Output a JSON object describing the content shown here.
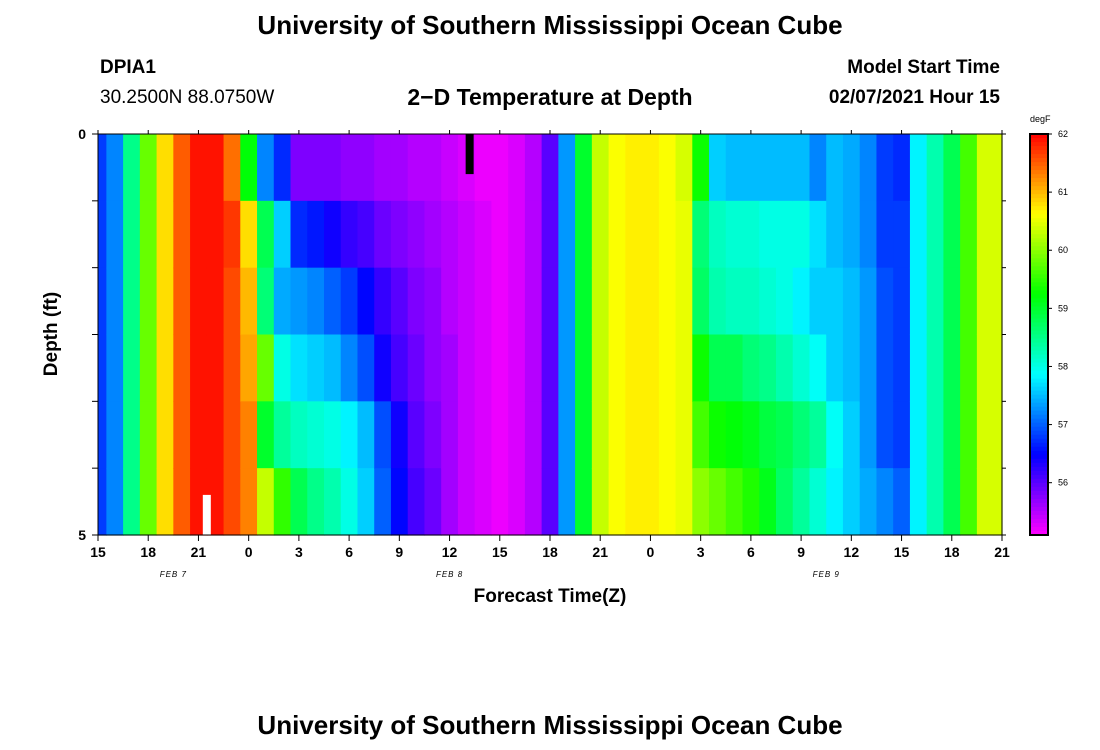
{
  "header": {
    "title": "University of Southern Mississippi Ocean Cube",
    "station_id": "DPIA1",
    "station_coords": "30.2500N 88.0750W",
    "plot_title": "2−D Temperature at Depth",
    "model_start_label": "Model Start Time",
    "model_start_value": "02/07/2021 Hour 15"
  },
  "footer": {
    "title": "University of Southern Mississippi Ocean Cube"
  },
  "chart_data": {
    "type": "heatmap",
    "title": "2−D Temperature at Depth",
    "xlabel": "Forecast Time(Z)",
    "ylabel": "Depth (ft)",
    "x_hours": [
      0,
      1,
      2,
      3,
      4,
      5,
      6,
      7,
      8,
      9,
      10,
      11,
      12,
      13,
      14,
      15,
      16,
      17,
      18,
      19,
      20,
      21,
      22,
      23,
      24,
      25,
      26,
      27,
      28,
      29,
      30,
      31,
      32,
      33,
      34,
      35,
      36,
      37,
      38,
      39,
      40,
      41,
      42,
      43,
      44,
      45,
      46,
      47,
      48,
      49,
      50,
      51,
      52,
      53,
      54
    ],
    "x_tick_labels": [
      "15",
      "18",
      "21",
      "0",
      "3",
      "6",
      "9",
      "12",
      "15",
      "18",
      "21",
      "0",
      "3",
      "6",
      "9",
      "12",
      "15",
      "18",
      "21"
    ],
    "date_labels": [
      {
        "text": "FEB 7",
        "hour": 4.5
      },
      {
        "text": "FEB 8",
        "hour": 21
      },
      {
        "text": "FEB 9",
        "hour": 43.5
      }
    ],
    "y_depth_ft": [
      0,
      1,
      2,
      3,
      4,
      5
    ],
    "y_tick_labels": [
      "0",
      "5"
    ],
    "ylim": [
      0,
      5
    ],
    "colorbar": {
      "unit": "degF",
      "tick_labels": [
        "62",
        "61",
        "60",
        "59",
        "58",
        "57",
        "56"
      ],
      "tick_values": [
        62,
        61,
        60,
        59,
        58,
        57,
        56
      ],
      "range": [
        55.1,
        62.0
      ]
    },
    "missing_markers": [
      {
        "hour": 22.2,
        "depth_from": 0,
        "depth_to": 0.5,
        "color": "#000000"
      },
      {
        "hour": 6.5,
        "depth_from": 4.5,
        "depth_to": 5,
        "color": "#ffffff"
      }
    ],
    "values": [
      [
        56.8,
        56.8,
        56.8,
        56.8,
        56.8,
        56.8
      ],
      [
        57.2,
        57.2,
        57.2,
        57.2,
        57.2,
        57.2
      ],
      [
        58.5,
        58.5,
        58.5,
        58.5,
        58.5,
        58.5
      ],
      [
        59.8,
        59.8,
        59.8,
        59.8,
        59.8,
        59.8
      ],
      [
        60.8,
        60.8,
        60.8,
        60.8,
        60.8,
        60.8
      ],
      [
        61.5,
        61.5,
        61.5,
        61.5,
        61.5,
        61.5
      ],
      [
        61.9,
        61.9,
        61.9,
        61.9,
        61.9,
        61.9
      ],
      [
        61.9,
        61.9,
        61.9,
        61.9,
        61.9,
        61.9
      ],
      [
        61.4,
        61.7,
        61.6,
        61.6,
        61.6,
        61.6
      ],
      [
        59.2,
        60.8,
        61.0,
        61.1,
        61.3,
        61.3
      ],
      [
        57.2,
        58.8,
        58.6,
        59.8,
        59.0,
        60.3
      ],
      [
        56.7,
        57.6,
        57.4,
        58.0,
        58.4,
        59.5
      ],
      [
        55.8,
        56.7,
        57.3,
        57.7,
        58.2,
        58.8
      ],
      [
        55.8,
        56.6,
        57.2,
        57.6,
        58.1,
        58.5
      ],
      [
        55.8,
        56.4,
        57.0,
        57.5,
        58.0,
        58.3
      ],
      [
        55.7,
        56.2,
        56.8,
        57.2,
        57.8,
        58.0
      ],
      [
        55.7,
        56.1,
        56.5,
        56.9,
        57.5,
        57.6
      ],
      [
        55.6,
        55.9,
        56.2,
        56.4,
        56.9,
        57.0
      ],
      [
        55.6,
        55.8,
        56.0,
        56.1,
        56.4,
        56.5
      ],
      [
        55.5,
        55.7,
        55.8,
        55.9,
        56.0,
        56.1
      ],
      [
        55.5,
        55.6,
        55.7,
        55.7,
        55.8,
        55.9
      ],
      [
        55.4,
        55.5,
        55.5,
        55.6,
        55.6,
        55.6
      ],
      [
        55.3,
        55.4,
        55.4,
        55.4,
        55.4,
        55.4
      ],
      [
        55.2,
        55.3,
        55.3,
        55.3,
        55.3,
        55.3
      ],
      [
        55.2,
        55.2,
        55.2,
        55.2,
        55.2,
        55.2
      ],
      [
        55.3,
        55.3,
        55.3,
        55.3,
        55.3,
        55.3
      ],
      [
        55.5,
        55.5,
        55.5,
        55.5,
        55.5,
        55.5
      ],
      [
        56.0,
        56.0,
        56.0,
        56.0,
        56.0,
        56.0
      ],
      [
        57.3,
        57.3,
        57.3,
        57.3,
        57.3,
        57.3
      ],
      [
        59.0,
        59.0,
        59.0,
        59.0,
        59.0,
        59.0
      ],
      [
        60.3,
        60.3,
        60.3,
        60.3,
        60.3,
        60.3
      ],
      [
        60.6,
        60.6,
        60.6,
        60.6,
        60.6,
        60.6
      ],
      [
        60.7,
        60.7,
        60.7,
        60.7,
        60.7,
        60.7
      ],
      [
        60.7,
        60.7,
        60.7,
        60.7,
        60.7,
        60.7
      ],
      [
        60.6,
        60.6,
        60.6,
        60.6,
        60.6,
        60.6
      ],
      [
        60.4,
        60.5,
        60.5,
        60.5,
        60.5,
        60.5
      ],
      [
        59.3,
        58.6,
        58.7,
        59.3,
        59.6,
        60.0
      ],
      [
        57.6,
        58.2,
        58.3,
        58.8,
        59.3,
        59.8
      ],
      [
        57.5,
        58.1,
        58.2,
        58.8,
        59.2,
        59.6
      ],
      [
        57.5,
        58.1,
        58.2,
        58.6,
        59.1,
        59.4
      ],
      [
        57.5,
        58.0,
        58.1,
        58.5,
        58.9,
        59.1
      ],
      [
        57.5,
        58.0,
        58.0,
        58.3,
        58.8,
        58.7
      ],
      [
        57.5,
        58.0,
        57.8,
        58.1,
        58.6,
        58.4
      ],
      [
        57.2,
        57.7,
        57.6,
        57.9,
        58.4,
        58.1
      ],
      [
        57.5,
        57.5,
        57.6,
        57.6,
        57.9,
        57.8
      ],
      [
        57.4,
        57.4,
        57.5,
        57.5,
        57.6,
        57.6
      ],
      [
        57.2,
        57.2,
        57.3,
        57.3,
        57.3,
        57.4
      ],
      [
        56.8,
        56.8,
        56.9,
        56.9,
        56.9,
        57.2
      ],
      [
        56.7,
        56.8,
        56.8,
        56.8,
        56.8,
        57.0
      ],
      [
        57.8,
        57.8,
        57.8,
        57.8,
        57.8,
        57.8
      ],
      [
        58.3,
        58.3,
        58.3,
        58.3,
        58.3,
        58.3
      ],
      [
        58.8,
        58.8,
        58.8,
        58.8,
        58.8,
        58.8
      ],
      [
        59.6,
        59.6,
        59.6,
        59.6,
        59.6,
        59.6
      ],
      [
        60.4,
        60.4,
        60.4,
        60.4,
        60.4,
        60.4
      ],
      [
        60.4,
        60.4,
        60.4,
        60.4,
        60.4,
        60.4
      ]
    ]
  }
}
